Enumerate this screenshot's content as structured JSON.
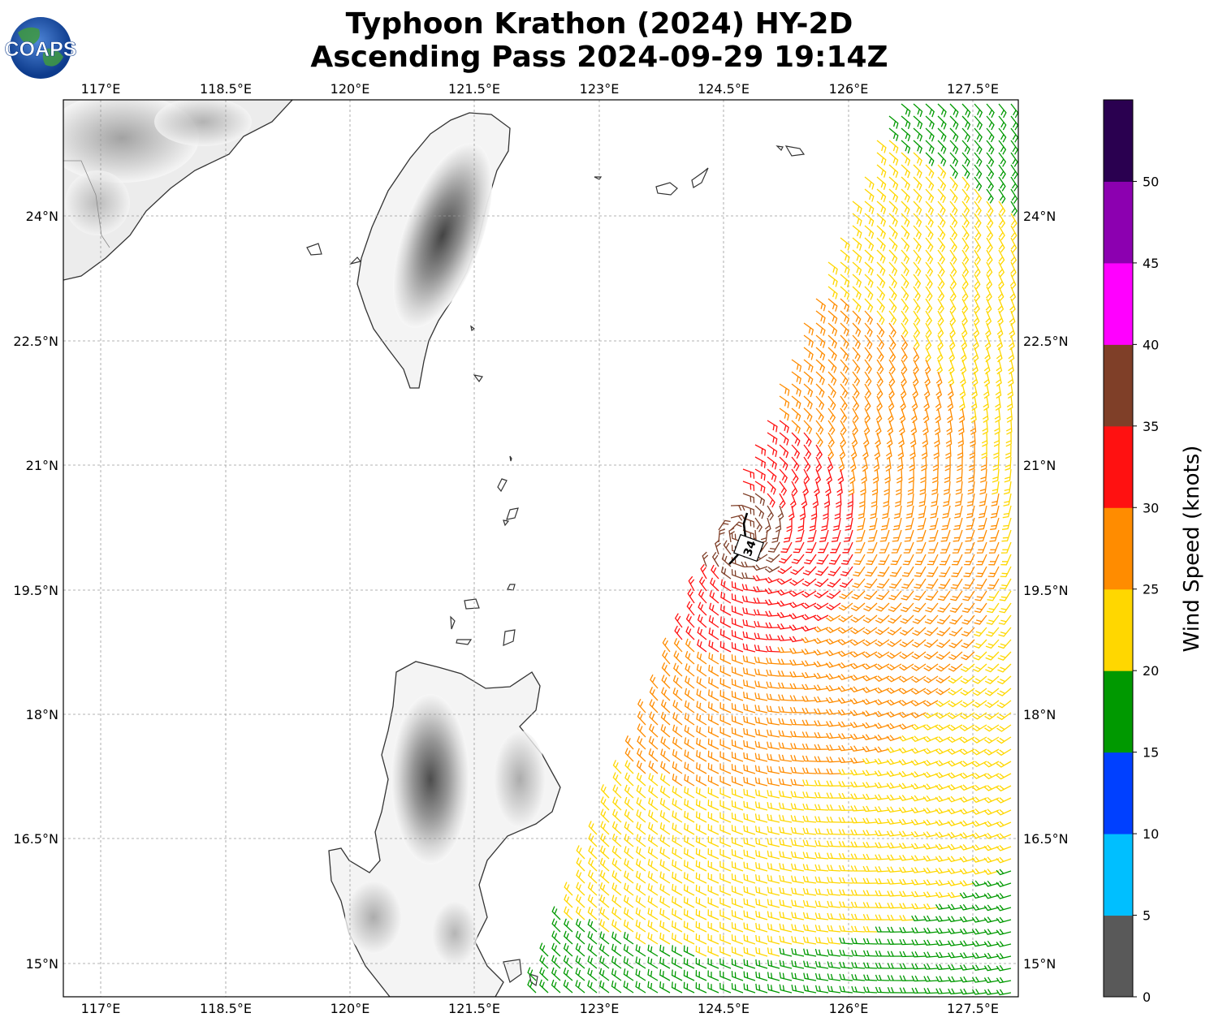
{
  "title": {
    "line1": "Typhoon Krathon (2024) HY-2D",
    "line2": "Ascending Pass 2024-09-29 19:14Z"
  },
  "logo": {
    "text": "COAPS",
    "icon": "globe-icon"
  },
  "map": {
    "lon_range": [
      116.55,
      128.05
    ],
    "lat_range": [
      14.6,
      25.4
    ],
    "lon_ticks": [
      "117°E",
      "118.5°E",
      "120°E",
      "121.5°E",
      "123°E",
      "124.5°E",
      "126°E",
      "127.5°E"
    ],
    "lat_ticks": [
      "24°N",
      "22.5°N",
      "21°N",
      "19.5°N",
      "18°N",
      "16.5°N",
      "15°N"
    ],
    "gridlines": true,
    "annotation_34kt": "34"
  },
  "colorbar": {
    "label": "Wind Speed (knots)",
    "ticks": [
      "0",
      "5",
      "10",
      "15",
      "20",
      "25",
      "30",
      "35",
      "40",
      "45",
      "50"
    ],
    "colors": [
      "#595959",
      "#00bfff",
      "#0040ff",
      "#009900",
      "#ffd700",
      "#ff8c00",
      "#ff1111",
      "#7f3f28",
      "#ff00ff",
      "#8c00b0",
      "#2a0050"
    ]
  }
}
